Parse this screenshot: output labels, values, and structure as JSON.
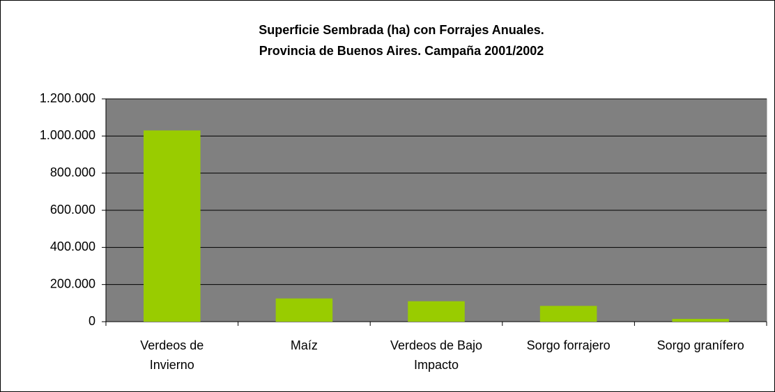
{
  "chart_data": {
    "type": "bar",
    "title": [
      "Superficie Sembrada (ha) con Forrajes Anuales.",
      "Provincia de Buenos Aires. Campaña 2001/2002"
    ],
    "categories": [
      "Verdeos de Invierno",
      "Maíz",
      "Verdeos de Bajo Impacto",
      "Sorgo forrajero",
      "Sorgo granífero"
    ],
    "values": [
      1030000,
      125000,
      110000,
      85000,
      15000
    ],
    "color": "#99cc00",
    "ylim": [
      0,
      1200000
    ],
    "yticks": [
      0,
      {
        "value": 200000,
        "label": "200.000"
      },
      {
        "value": 400000,
        "label": "400.000"
      },
      {
        "value": 600000,
        "label": "600.000"
      },
      {
        "value": 800000,
        "label": "800.000"
      },
      {
        "value": 1000000,
        "label": "1.000.000"
      },
      {
        "value": 1200000,
        "label": "1.200.000"
      }
    ],
    "grid": true
  }
}
